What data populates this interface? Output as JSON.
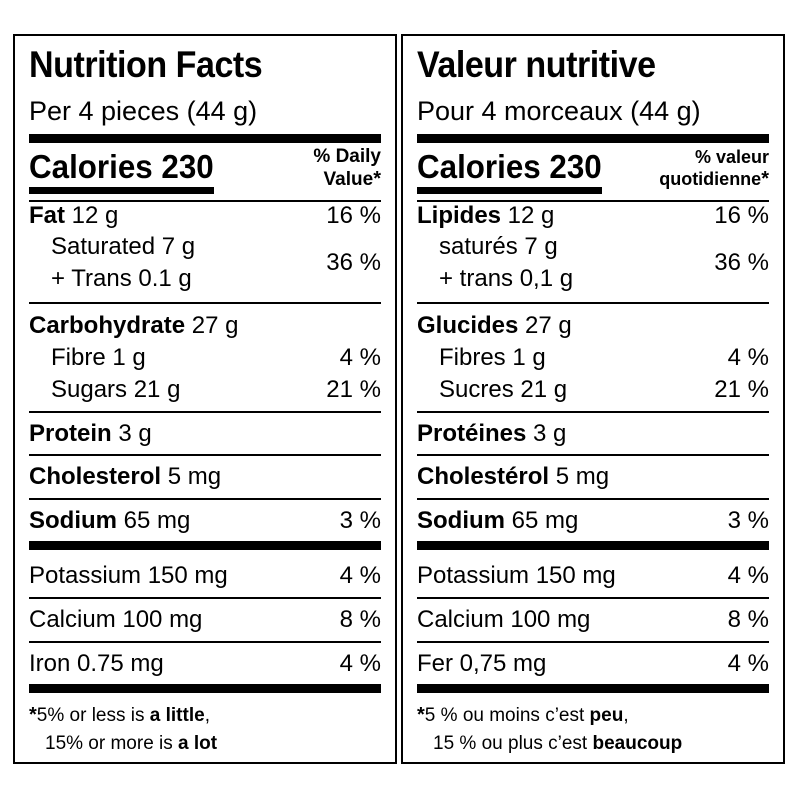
{
  "en": {
    "title": "Nutrition Facts",
    "serving": "Per 4 pieces (44 g)",
    "calories_label": "Calories 230",
    "dv_line1": "% Daily",
    "dv_line2": "Value",
    "asterisk": "*",
    "fat_name": "Fat",
    "fat_amount": " 12 g",
    "fat_pct": "16 %",
    "sat": "Saturated 7 g",
    "trans": "+ Trans 0.1 g",
    "sat_trans_pct": "36 %",
    "carb_name": "Carbohydrate",
    "carb_amount": " 27 g",
    "fibre": "Fibre 1 g",
    "fibre_pct": "4 %",
    "sugars": "Sugars 21 g",
    "sugars_pct": "21 %",
    "protein_name": "Protein",
    "protein_amount": " 3 g",
    "chol_name": "Cholesterol",
    "chol_amount": " 5 mg",
    "sodium_name": "Sodium",
    "sodium_amount": " 65 mg",
    "sodium_pct": "3 %",
    "potassium": "Potassium 150 mg",
    "potassium_pct": "4 %",
    "calcium": "Calcium 100 mg",
    "calcium_pct": "8 %",
    "iron": "Iron 0.75 mg",
    "iron_pct": "4 %",
    "foot1_a": "5% or less is ",
    "foot1_b": "a little",
    "foot2_a": "15% or more is ",
    "foot2_b": "a lot"
  },
  "fr": {
    "title": "Valeur nutritive",
    "serving": "Pour 4 morceaux (44 g)",
    "calories_label": "Calories 230",
    "dv_line1": "% valeur",
    "dv_line2": "quotidienne",
    "asterisk": "*",
    "fat_name": "Lipides",
    "fat_amount": " 12 g",
    "fat_pct": "16 %",
    "sat": "saturés 7 g",
    "trans": "+ trans 0,1 g",
    "sat_trans_pct": "36 %",
    "carb_name": "Glucides",
    "carb_amount": " 27 g",
    "fibre": "Fibres 1 g",
    "fibre_pct": "4 %",
    "sugars": "Sucres 21 g",
    "sugars_pct": "21 %",
    "protein_name": "Protéines",
    "protein_amount": " 3 g",
    "chol_name": "Cholestérol",
    "chol_amount": " 5 mg",
    "sodium_name": "Sodium",
    "sodium_amount": " 65 mg",
    "sodium_pct": "3 %",
    "potassium": "Potassium 150 mg",
    "potassium_pct": "4 %",
    "calcium": "Calcium 100 mg",
    "calcium_pct": "8 %",
    "iron": "Fer 0,75 mg",
    "iron_pct": "4 %",
    "foot1_a": "5 % ou moins c’est ",
    "foot1_b": "peu",
    "foot2_a": "15 % ou plus c’est ",
    "foot2_b": "beaucoup"
  }
}
